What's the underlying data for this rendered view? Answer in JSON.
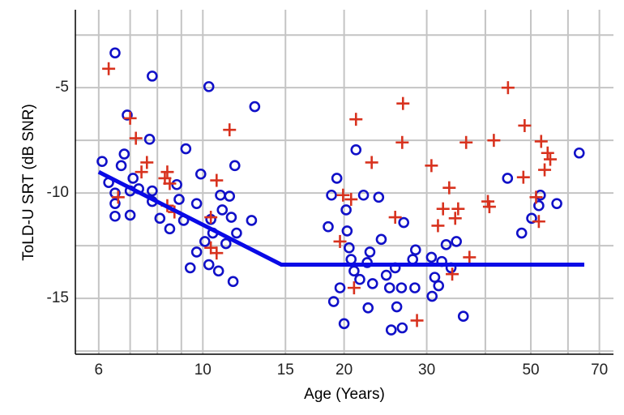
{
  "chart_data": {
    "type": "scatter",
    "x_label": "Age (Years)",
    "y_label": "ToLD-U SRT (dB SNR)",
    "x_scale": "log",
    "xlim": [
      5.35,
      75
    ],
    "ylim": [
      -17.65,
      -1.3
    ],
    "xticks": [
      6,
      10,
      15,
      20,
      30,
      50,
      70
    ],
    "yticks": [
      -15,
      -10,
      -5
    ],
    "x_minor_grid": [
      7,
      8,
      9,
      40,
      60
    ],
    "y_minor_grid": [
      -17.5,
      -12.5,
      -7.5,
      -2.5
    ],
    "grid": true,
    "series": [
      {
        "color": "#1010c8",
        "marker": "circle",
        "x": [
          6.1,
          6.5,
          6.3,
          6.5,
          6.5,
          6.5,
          6.8,
          6.9,
          6.7,
          7.0,
          7.1,
          7.0,
          7.3,
          7.7,
          7.8,
          7.8,
          7.8,
          8.1,
          8.5,
          8.8,
          8.9,
          9.2,
          9.1,
          9.4,
          9.7,
          9.9,
          9.7,
          10.3,
          10.1,
          10.3,
          10.4,
          10.5,
          10.8,
          10.9,
          11.0,
          11.2,
          11.4,
          11.5,
          11.6,
          11.7,
          11.8,
          12.9,
          12.7,
          18.5,
          18.8,
          19.3,
          19.0,
          19.6,
          20,
          20.2,
          20.3,
          20.5,
          20.7,
          21,
          21.2,
          21.6,
          22,
          22.4,
          22.7,
          22.5,
          23,
          23.7,
          24,
          24.6,
          25,
          25.2,
          25.7,
          25.9,
          26.5,
          26.6,
          26.8,
          28,
          28.3,
          28.4,
          30.7,
          30.8,
          31.2,
          31.8,
          32.3,
          33,
          33.8,
          34.7,
          35.9,
          44.6,
          47.8,
          50.2,
          52,
          52.4,
          56.8,
          63.4
        ],
        "values": [
          -8.5,
          -3.35,
          -9.5,
          -10,
          -10.5,
          -11.1,
          -8.15,
          -6.3,
          -8.7,
          -11.05,
          -9.3,
          -9.9,
          -9.8,
          -7.45,
          -4.45,
          -9.9,
          -10.4,
          -11.2,
          -11.7,
          -9.6,
          -10.3,
          -7.9,
          -11.3,
          -13.55,
          -10.5,
          -9.1,
          -12.8,
          -4.95,
          -12.3,
          -13.4,
          -11.25,
          -11.9,
          -13.7,
          -10.1,
          -10.8,
          -12.4,
          -10.15,
          -11.15,
          -14.2,
          -8.7,
          -11.9,
          -5.9,
          -11.3,
          -11.6,
          -10.1,
          -9.3,
          -15.15,
          -14.5,
          -16.2,
          -10.8,
          -11.8,
          -12.6,
          -13.15,
          -13.7,
          -7.95,
          -14.1,
          -10.1,
          -13.3,
          -12.8,
          -15.45,
          -14.3,
          -10.2,
          -12.2,
          -13.9,
          -14.5,
          -16.5,
          -13.55,
          -15.4,
          -14.5,
          -16.4,
          -11.4,
          -13.15,
          -14.5,
          -12.7,
          -13.05,
          -14.9,
          -14,
          -14.4,
          -13.25,
          -12.45,
          -13.55,
          -12.3,
          -15.85,
          -9.3,
          -11.9,
          -11.2,
          -10.6,
          -10.1,
          -10.5,
          -8.1
        ]
      },
      {
        "color": "#d8321e",
        "marker": "plus",
        "x": [
          6.3,
          6.6,
          7.0,
          7.2,
          7.4,
          7.6,
          8.3,
          8.4,
          8.5,
          8.7,
          8.4,
          10.4,
          10.4,
          10.7,
          10.7,
          11.4,
          19.6,
          19.9,
          20.7,
          21,
          21.2,
          22.9,
          25.7,
          26.7,
          26.6,
          28.6,
          30.7,
          31.7,
          32.5,
          33.5,
          34,
          34.5,
          35,
          36.4,
          37,
          40.5,
          40.8,
          41.7,
          44.7,
          48.5,
          48.2,
          51.3,
          52,
          52.6,
          53.5,
          54.3,
          55
        ],
        "values": [
          -4.1,
          -10.2,
          -6.45,
          -7.4,
          -9.0,
          -8.55,
          -9.3,
          -9.0,
          -9.55,
          -10.9,
          -10.6,
          -11.15,
          -12.6,
          -9.4,
          -12.85,
          -7.0,
          -12.3,
          -10.1,
          -10.3,
          -14.5,
          -6.5,
          -8.55,
          -11.15,
          -5.75,
          -7.6,
          -16.05,
          -8.7,
          -11.55,
          -10.75,
          -9.75,
          -13.85,
          -11.2,
          -10.75,
          -7.6,
          -13.05,
          -10.4,
          -10.65,
          -7.5,
          -5,
          -6.8,
          -9.25,
          -10.2,
          -11.35,
          -7.55,
          -8.9,
          -8.1,
          -8.4
        ]
      },
      {
        "color": "#0a0ae6",
        "marker": "line",
        "x": [
          6,
          14.7,
          65
        ],
        "values": [
          -9,
          -13.4,
          -13.4
        ]
      }
    ]
  }
}
